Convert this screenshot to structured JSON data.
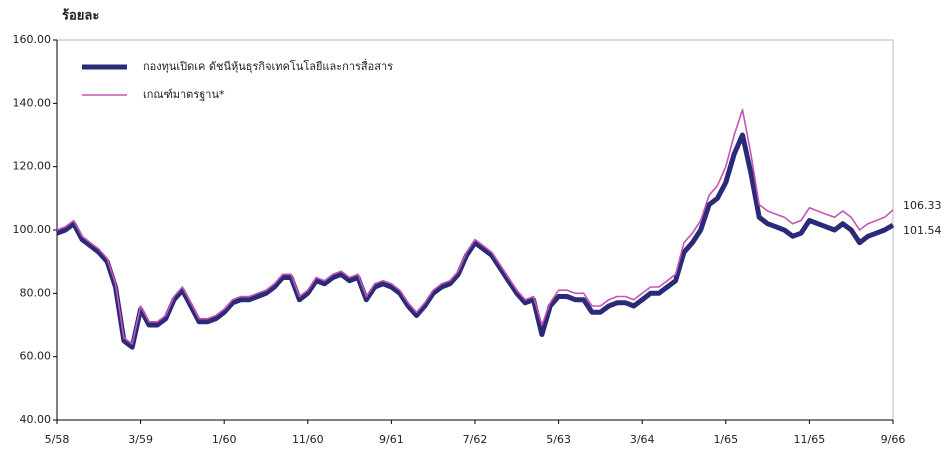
{
  "chart_data": {
    "type": "line",
    "ylabel": "ร้อยละ",
    "categories": [
      "5/58",
      null,
      null,
      null,
      null,
      null,
      null,
      null,
      null,
      null,
      "3/59",
      null,
      null,
      null,
      null,
      null,
      null,
      null,
      null,
      null,
      "1/60",
      null,
      null,
      null,
      null,
      null,
      null,
      null,
      null,
      null,
      "11/60",
      null,
      null,
      null,
      null,
      null,
      null,
      null,
      null,
      null,
      "9/61",
      null,
      null,
      null,
      null,
      null,
      null,
      null,
      null,
      null,
      "7/62",
      null,
      null,
      null,
      null,
      null,
      null,
      null,
      null,
      null,
      "5/63",
      null,
      null,
      null,
      null,
      null,
      null,
      null,
      null,
      null,
      "3/64",
      null,
      null,
      null,
      null,
      null,
      null,
      null,
      null,
      null,
      "1/65",
      null,
      null,
      null,
      null,
      null,
      null,
      null,
      null,
      null,
      "11/65",
      null,
      null,
      null,
      null,
      null,
      null,
      null,
      null,
      null,
      "9/66"
    ],
    "series": [
      {
        "name": "กองทุนเปิดเค ดัชนีหุ้นธุรกิจเทคโนโลยีและการสื่อสาร",
        "color": "#2b2a78",
        "values": [
          99,
          100,
          102,
          97,
          95,
          93,
          90,
          82,
          65,
          63,
          75,
          70,
          70,
          72,
          78,
          81,
          76,
          71,
          71,
          72,
          74,
          77,
          78,
          78,
          79,
          80,
          82,
          85,
          85,
          78,
          80,
          84,
          83,
          85,
          86,
          84,
          85,
          78,
          82,
          83,
          82,
          80,
          76,
          73,
          76,
          80,
          82,
          83,
          86,
          92,
          96,
          94,
          92,
          88,
          84,
          80,
          77,
          78,
          67,
          76,
          79,
          79,
          78,
          78,
          74,
          74,
          76,
          77,
          77,
          76,
          78,
          80,
          80,
          82,
          84,
          93,
          96,
          100,
          108,
          110,
          115,
          124,
          130,
          118,
          104,
          102,
          101,
          100,
          98,
          99,
          103,
          102,
          101,
          100,
          102,
          100,
          96,
          98,
          99,
          100,
          101.54
        ]
      },
      {
        "name": "เกณฑ์มาตรฐาน*",
        "color": "#c455b5",
        "values": [
          100,
          101,
          103,
          98,
          96,
          94,
          91,
          83,
          66,
          64,
          76,
          71,
          71,
          73,
          79,
          82,
          77,
          72,
          72,
          73,
          75,
          78,
          79,
          79,
          80,
          81,
          83,
          86,
          86,
          79,
          81,
          85,
          84,
          86,
          87,
          85,
          86,
          79,
          83,
          84,
          83,
          81,
          77,
          74,
          77,
          81,
          83,
          84,
          87,
          93,
          97,
          95,
          93,
          89,
          85,
          81,
          78,
          79,
          70,
          77,
          81,
          81,
          80,
          80,
          76,
          76,
          78,
          79,
          79,
          78,
          80,
          82,
          82,
          84,
          86,
          96,
          99,
          103,
          111,
          114,
          120,
          130,
          138,
          124,
          108,
          106,
          105,
          104,
          102,
          103,
          107,
          106,
          105,
          104,
          106,
          104,
          100,
          102,
          103,
          104,
          106.33
        ]
      }
    ],
    "ylim": [
      40,
      160
    ],
    "yticks": [
      {
        "value": 40,
        "label": "40.00"
      },
      {
        "value": 60,
        "label": "60.00"
      },
      {
        "value": 80,
        "label": "80.00"
      },
      {
        "value": 100,
        "label": "100.00"
      },
      {
        "value": 120,
        "label": "120.00"
      },
      {
        "value": 140,
        "label": "140.00"
      },
      {
        "value": 160,
        "label": "160.00"
      }
    ],
    "legend": "upper-left"
  }
}
